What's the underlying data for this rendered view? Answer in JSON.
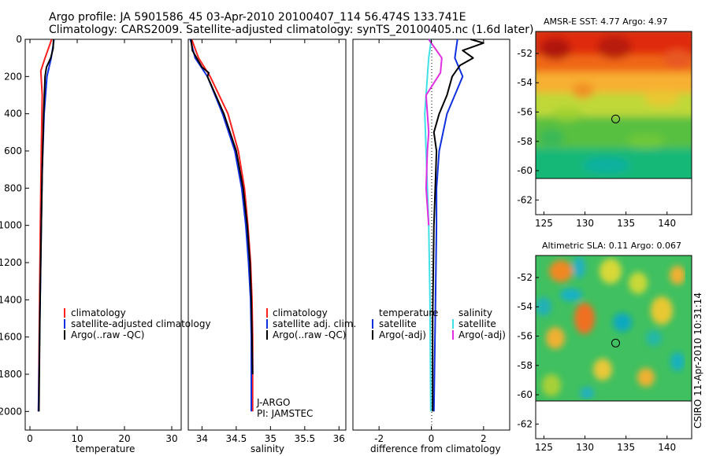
{
  "header": {
    "line1": "Argo profile: JA 5901586_45 03-Apr-2010 20100407_114 56.474S 133.741E",
    "line2": "Climatology: CARS2009. Satellite-adjusted climatology: synTS_20100405.nc (1.6d later)"
  },
  "side_label": "CSIRO 11-Apr-2010 10:31:14",
  "colors": {
    "climatology": "#ff2020",
    "satellite": "#1030e0",
    "argo": "#000000",
    "sat_diff": "#40e0e8",
    "argo_adj_sal": "#e030e0"
  },
  "chart_data": [
    {
      "type": "line",
      "name": "temperature-profile",
      "xlabel": "temperature",
      "ylabel": "",
      "xlim": [
        -1,
        32
      ],
      "ylim": [
        2100,
        0
      ],
      "xticks": [
        0,
        10,
        20,
        30
      ],
      "yticks": [
        0,
        200,
        400,
        600,
        800,
        1000,
        1200,
        1400,
        1600,
        1800,
        2000
      ],
      "legend": [
        "climatology",
        "satellite-adjusted climatology",
        "Argo(..raw -QC)"
      ],
      "series": [
        {
          "name": "climatology",
          "color": "#ff2020",
          "depth": [
            0,
            100,
            170,
            300,
            600,
            1000,
            1500,
            2000
          ],
          "values": [
            4.6,
            3.2,
            2.3,
            2.6,
            2.4,
            2.2,
            2.0,
            1.8
          ]
        },
        {
          "name": "satellite-adjusted climatology",
          "color": "#1030e0",
          "depth": [
            0,
            100,
            200,
            400,
            700,
            1000,
            1500,
            2000
          ],
          "values": [
            5.1,
            4.5,
            3.6,
            3.0,
            2.6,
            2.4,
            2.1,
            1.8
          ]
        },
        {
          "name": "Argo(..raw -QC)",
          "color": "#000000",
          "depth": [
            0,
            50,
            100,
            150,
            200,
            400,
            700,
            1000,
            1500,
            2000
          ],
          "values": [
            5.0,
            4.9,
            4.4,
            3.5,
            3.2,
            2.9,
            2.6,
            2.4,
            2.1,
            1.9
          ]
        }
      ]
    },
    {
      "type": "line",
      "name": "salinity-profile",
      "xlabel": "salinity",
      "ylabel": "",
      "xlim": [
        33.8,
        36.1
      ],
      "ylim": [
        2100,
        0
      ],
      "xticks": [
        34,
        34.5,
        35,
        35.5,
        36
      ],
      "xticklabels": [
        "34",
        "34.5",
        "35",
        "35.5",
        "36"
      ],
      "legend": [
        "climatology",
        "satellite adj. clim.",
        "Argo(..raw -QC)"
      ],
      "annotation": [
        "J-ARGO",
        "PI: JAMSTEC"
      ],
      "series": [
        {
          "name": "climatology",
          "color": "#ff2020",
          "depth": [
            0,
            100,
            200,
            400,
            600,
            800,
            1000,
            1200,
            1400,
            1600,
            2000
          ],
          "values": [
            33.85,
            33.95,
            34.12,
            34.38,
            34.53,
            34.62,
            34.67,
            34.71,
            34.73,
            34.74,
            34.74
          ]
        },
        {
          "name": "satellite adj. clim.",
          "color": "#1030e0",
          "depth": [
            0,
            100,
            200,
            400,
            600,
            800,
            1000,
            1200,
            1400,
            1600,
            2000
          ],
          "values": [
            33.83,
            33.9,
            34.08,
            34.3,
            34.48,
            34.58,
            34.64,
            34.68,
            34.71,
            34.72,
            34.72
          ]
        },
        {
          "name": "Argo(..raw -QC)",
          "color": "#000000",
          "depth": [
            0,
            60,
            150,
            180,
            200,
            300,
            400,
            600,
            800,
            1000,
            1200,
            1400,
            1600,
            1800
          ],
          "values": [
            33.84,
            33.86,
            34.0,
            34.1,
            34.08,
            34.2,
            34.32,
            34.5,
            34.6,
            34.66,
            34.7,
            34.72,
            34.73,
            34.74
          ]
        }
      ]
    },
    {
      "type": "line",
      "name": "difference-profile",
      "xlabel": "difference from climatology",
      "ylabel": "",
      "xlim": [
        -3,
        3
      ],
      "ylim": [
        2100,
        0
      ],
      "xticks": [
        -2,
        0,
        2
      ],
      "legend_temperature": {
        "heading": "temperature",
        "entries": [
          "satellite",
          "Argo(-adj)"
        ]
      },
      "legend_salinity": {
        "heading": "salinity",
        "entries": [
          "satellite",
          "Argo(-adj)"
        ]
      },
      "series": [
        {
          "name": "temperature satellite",
          "color": "#1030e0",
          "depth": [
            0,
            100,
            200,
            400,
            600,
            800,
            1000,
            1500,
            2000
          ],
          "values": [
            1.0,
            0.9,
            1.2,
            0.6,
            0.3,
            0.2,
            0.2,
            0.15,
            0.1
          ]
        },
        {
          "name": "temperature Argo(-adj)",
          "color": "#000000",
          "depth": [
            0,
            20,
            60,
            100,
            140,
            200,
            300,
            400,
            500,
            600,
            800,
            1000,
            1500,
            2000
          ],
          "values": [
            1.5,
            2.0,
            1.2,
            1.6,
            1.1,
            0.8,
            0.6,
            0.3,
            0.1,
            0.2,
            0.15,
            0.1,
            0.05,
            0.05
          ]
        },
        {
          "name": "salinity satellite",
          "color": "#40e0e8",
          "depth": [
            0,
            100,
            200,
            400,
            600,
            800,
            1000,
            1400,
            2000
          ],
          "values": [
            0.0,
            -0.1,
            -0.15,
            -0.25,
            -0.2,
            -0.15,
            -0.1,
            -0.05,
            -0.02
          ]
        },
        {
          "name": "salinity Argo(-adj)",
          "color": "#e030e0",
          "depth": [
            0,
            100,
            180,
            300,
            500,
            600,
            800,
            1000
          ],
          "values": [
            -0.1,
            0.4,
            0.35,
            -0.2,
            -0.1,
            -0.15,
            -0.2,
            -0.1
          ]
        }
      ]
    },
    {
      "type": "heatmap",
      "name": "sst-map",
      "title": "AMSR-E SST: 4.77  Argo: 4.97",
      "xlim": [
        124,
        143
      ],
      "ylim": [
        -63,
        -50.5
      ],
      "xticks": [
        125,
        130,
        135,
        140
      ],
      "yticks": [
        -52,
        -54,
        -56,
        -58,
        -60,
        -62
      ],
      "marker": {
        "lon": 133.741,
        "lat": -56.474
      }
    },
    {
      "type": "heatmap",
      "name": "sla-map",
      "title": "Altimetric SLA: 0.11  Argo: 0.067",
      "xlim": [
        124,
        143
      ],
      "ylim": [
        -63,
        -50.5
      ],
      "xticks": [
        125,
        130,
        135,
        140
      ],
      "yticks": [
        -52,
        -54,
        -56,
        -58,
        -60,
        -62
      ],
      "marker": {
        "lon": 133.741,
        "lat": -56.474
      }
    }
  ]
}
